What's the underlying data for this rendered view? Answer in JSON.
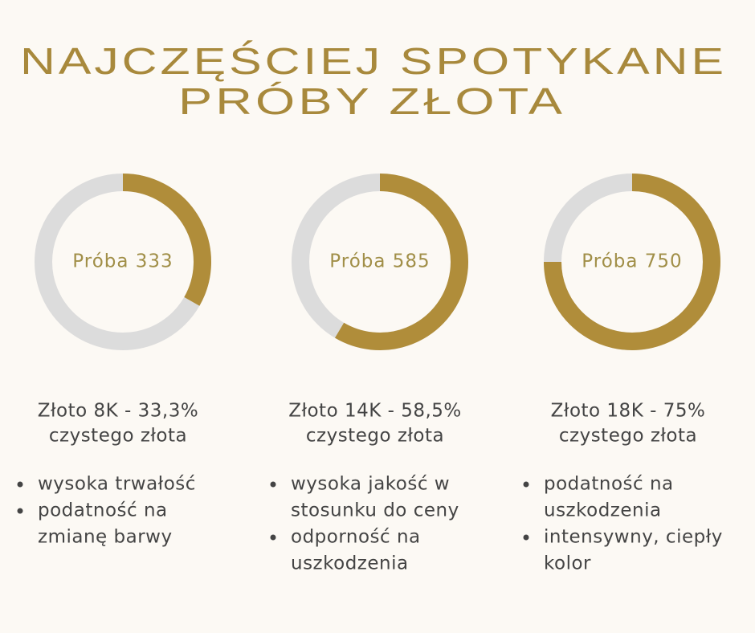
{
  "title": [
    "NAJCZĘŚCIEJ SPOTYKANE",
    "PRÓBY ZŁOTA"
  ],
  "chart_data": [
    {
      "type": "donut",
      "label": "Próba 333",
      "value": 33.3,
      "color": "#b08d3a",
      "track_color": "#dcdcdc"
    },
    {
      "type": "donut",
      "label": "Próba 585",
      "value": 58.5,
      "color": "#b08d3a",
      "track_color": "#dcdcdc"
    },
    {
      "type": "donut",
      "label": "Próba 750",
      "value": 75,
      "color": "#b08d3a",
      "track_color": "#dcdcdc"
    }
  ],
  "cards": [
    {
      "caption": [
        "Złoto 8K - 33,3%",
        "czystego złota"
      ],
      "bullets": [
        [
          "wysoka trwałość"
        ],
        [
          "podatność na",
          "zmianę barwy"
        ]
      ]
    },
    {
      "caption": [
        "Złoto 14K - 58,5%",
        "czystego złota"
      ],
      "bullets": [
        [
          "wysoka jakość w",
          "stosunku do ceny"
        ],
        [
          "odporność na",
          "uszkodzenia"
        ]
      ]
    },
    {
      "caption": [
        "Złoto 18K - 75%",
        "czystego złota"
      ],
      "bullets": [
        [
          "podatność na",
          "uszkodzenia"
        ],
        [
          "intensywny, ciepły",
          "kolor"
        ]
      ]
    }
  ]
}
